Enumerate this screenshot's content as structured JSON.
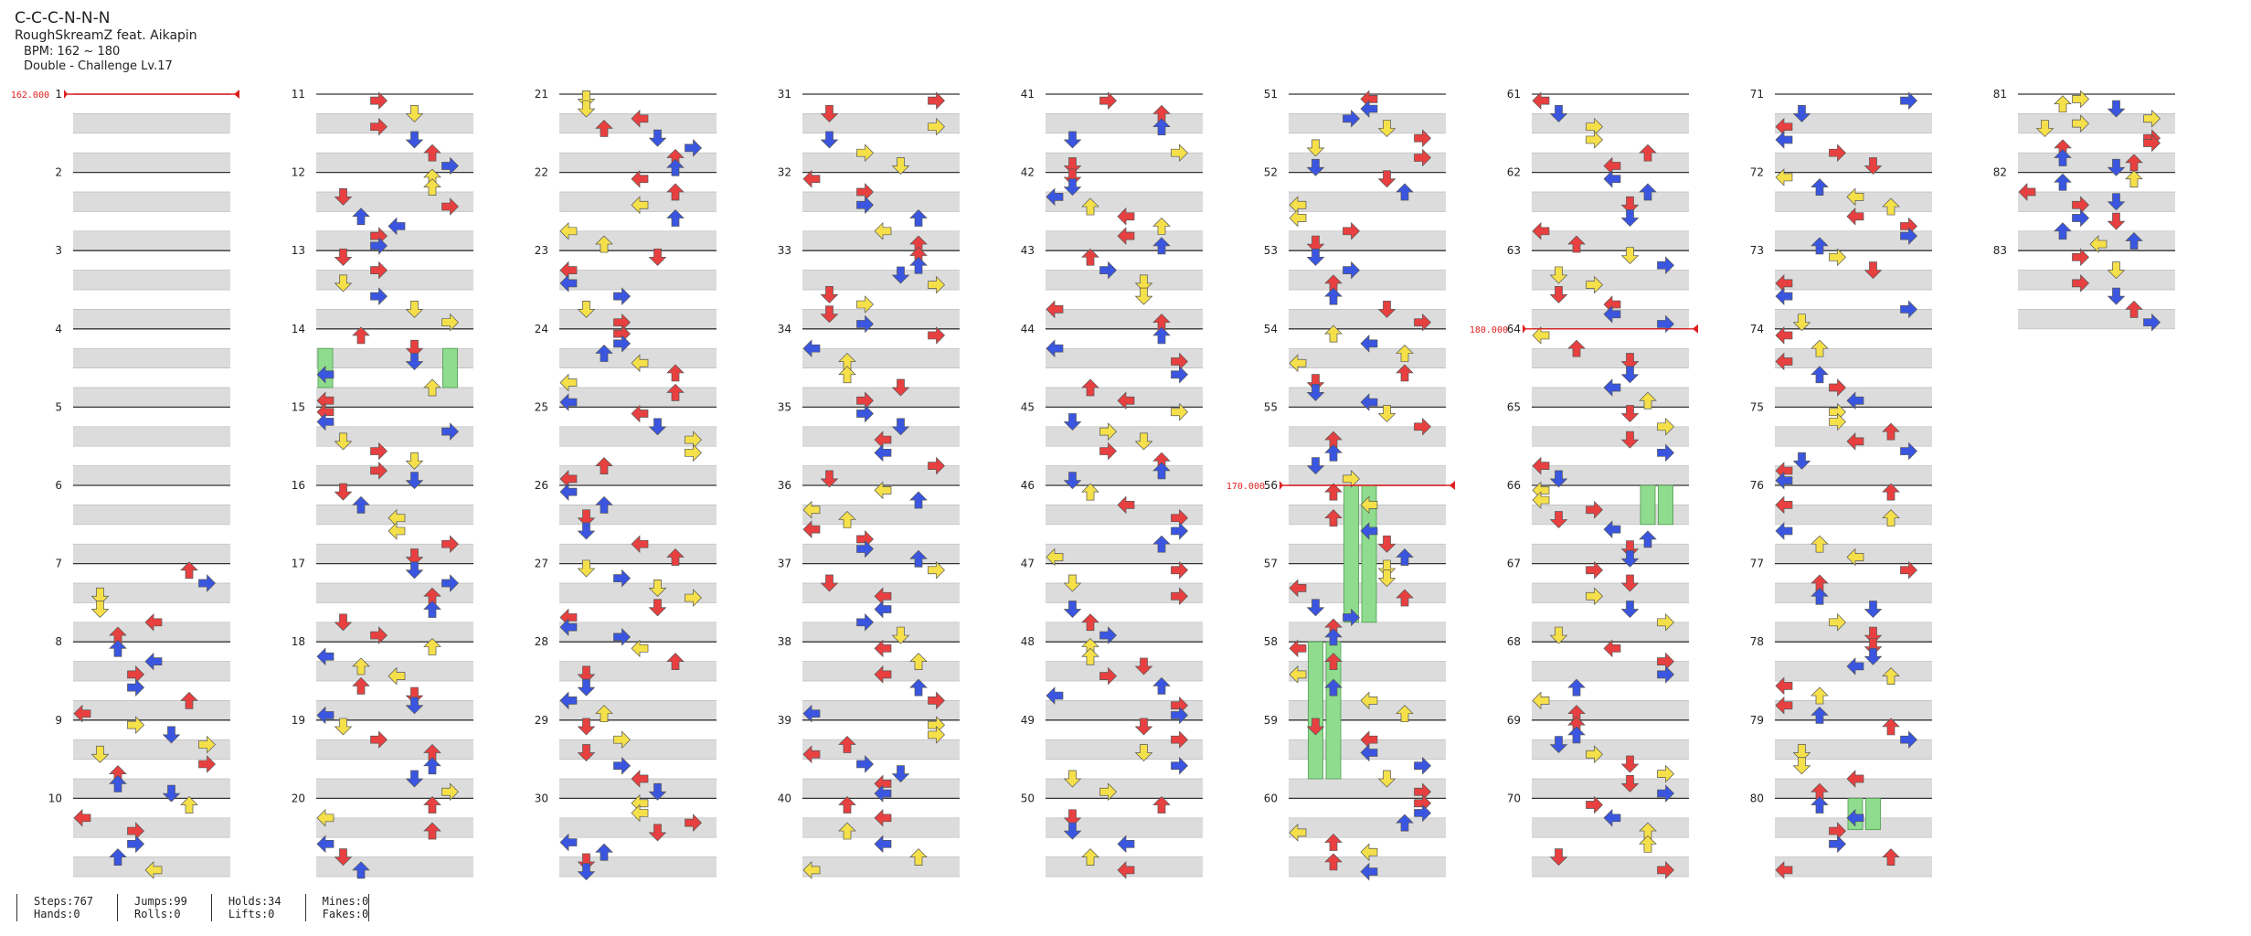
{
  "song": {
    "title": "C-C-C-N-N-N",
    "artist": "RoughSkreamZ feat. Aikapin",
    "bpm_text": "BPM: 162 ~ 180",
    "chart_text": "Double - Challenge  Lv.17"
  },
  "colors": {
    "red": "#e84040",
    "blue": "#3a56e0",
    "yellow": "#f5e04a",
    "purple": "#a050e8",
    "green": "#8fdc8f",
    "bpm_marker": "#e02020",
    "band": "#dcdcdc"
  },
  "notes": {
    "icon_names": [
      "left-arrow-icon",
      "down-arrow-icon",
      "up-arrow-icon",
      "right-arrow-icon",
      "hold-note-icon"
    ],
    "sample": [
      [
        1,
        "red"
      ],
      [
        1,
        "blue"
      ],
      [
        2,
        "yellow"
      ],
      [
        1,
        "yellow"
      ],
      [
        3,
        "red"
      ],
      [
        0,
        "red"
      ],
      [
        2,
        "blue"
      ],
      [
        3,
        "blue"
      ],
      [
        1,
        "red"
      ],
      [
        0,
        "blue"
      ],
      [
        2,
        "red"
      ],
      [
        3,
        "red"
      ],
      [
        0,
        "yellow"
      ],
      [
        1,
        "blue"
      ],
      [
        2,
        "yellow"
      ],
      [
        3,
        "yellow"
      ],
      [
        0,
        "red"
      ],
      [
        2,
        "red"
      ],
      [
        1,
        "blue"
      ],
      [
        3,
        "blue"
      ],
      [
        0,
        "yellow"
      ],
      [
        1,
        "red"
      ],
      [
        3,
        "red"
      ],
      [
        2,
        "blue"
      ],
      [
        0,
        "blue"
      ],
      [
        1,
        "yellow"
      ],
      [
        2,
        "red"
      ],
      [
        3,
        "yellow"
      ],
      [
        0,
        "red"
      ],
      [
        1,
        "blue"
      ]
    ]
  },
  "columns": [
    {
      "start": 1
    },
    {
      "start": 11
    },
    {
      "start": 21
    },
    {
      "start": 31
    },
    {
      "start": 41
    },
    {
      "start": 51
    },
    {
      "start": 61
    },
    {
      "start": 71
    },
    {
      "start": 81
    }
  ],
  "bpm_changes": [
    {
      "label": "162.000",
      "measure": 1
    },
    {
      "label": "180.000",
      "measure": 64
    },
    {
      "label": "170.000",
      "measure": 56
    }
  ],
  "holds": [
    {
      "measure": 14,
      "beat": 1,
      "lane": 0,
      "len": 0.5
    },
    {
      "measure": 14,
      "beat": 1,
      "lane": 7,
      "len": 0.5
    },
    {
      "measure": 56,
      "beat": 0,
      "lane": 3,
      "len": 1.75
    },
    {
      "measure": 56,
      "beat": 0,
      "lane": 4,
      "len": 1.75
    },
    {
      "measure": 58,
      "beat": 0,
      "lane": 1,
      "len": 1.75
    },
    {
      "measure": 58,
      "beat": 0,
      "lane": 2,
      "len": 1.75
    },
    {
      "measure": 66,
      "beat": 0,
      "lane": 6,
      "len": 0.5
    },
    {
      "measure": 66,
      "beat": 0,
      "lane": 7,
      "len": 0.5
    },
    {
      "measure": 80,
      "beat": 0,
      "lane": 4,
      "len": 0.4
    },
    {
      "measure": 80,
      "beat": 0,
      "lane": 5,
      "len": 0.4
    }
  ],
  "stats": [
    {
      "a": "Steps:767",
      "b": "Hands:0"
    },
    {
      "a": "Jumps:99",
      "b": "Rolls:0"
    },
    {
      "a": "Holds:34",
      "b": "Lifts:0"
    },
    {
      "a": "Mines:0",
      "b": "Fakes:0"
    }
  ]
}
